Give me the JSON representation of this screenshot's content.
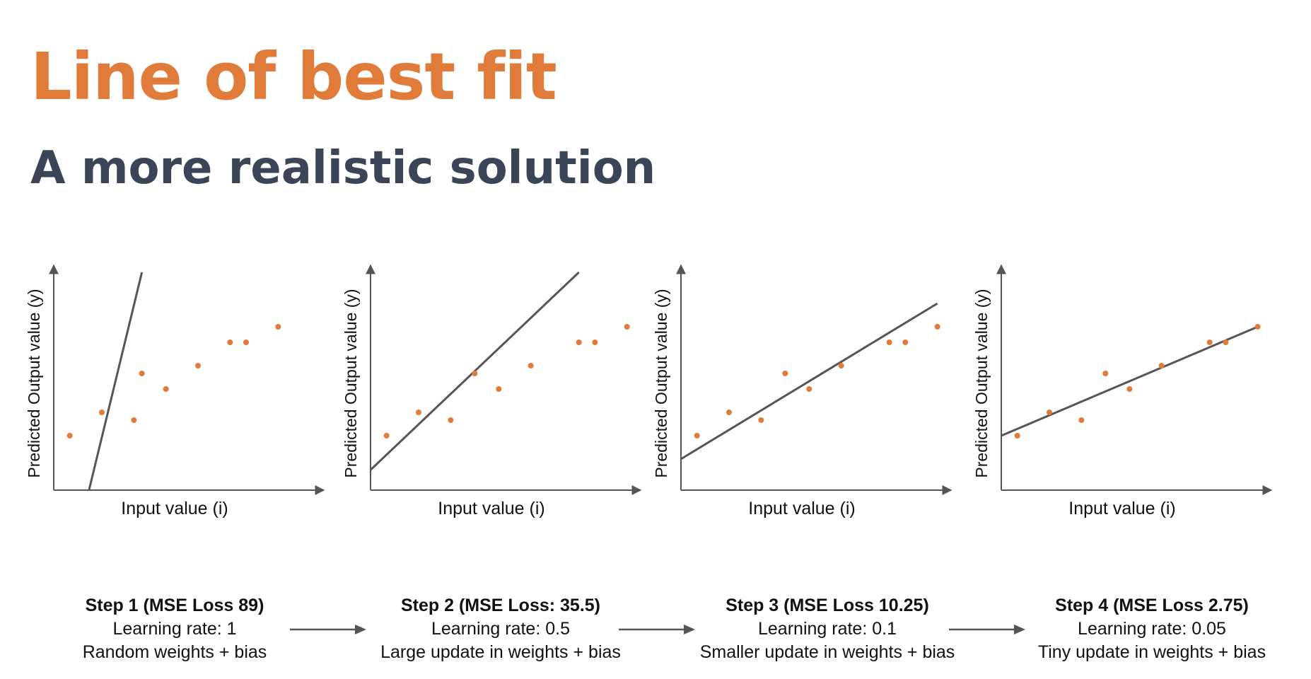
{
  "title": "Line of best fit",
  "subtitle": "A more realistic solution",
  "colors": {
    "title": "#e07b39",
    "subtitle": "#3c4457",
    "points": "#e07b39",
    "line": "#555555",
    "axes": "#555555"
  },
  "chart_data": [
    {
      "type": "scatter",
      "xlabel": "Input value (i)",
      "ylabel": "Predicted Output value (y)",
      "points": {
        "x": [
          1,
          3,
          5,
          5.5,
          7,
          9,
          11,
          12,
          14
        ],
        "y": [
          3.5,
          5,
          4.5,
          7.5,
          6.5,
          8,
          9.5,
          9.5,
          10.5
        ]
      },
      "fit_line": {
        "x": [
          2.2,
          5.5
        ],
        "y": [
          0,
          14
        ]
      }
    },
    {
      "type": "scatter",
      "xlabel": "Input value (i)",
      "ylabel": "Predicted Output value (y)",
      "points": {
        "x": [
          1,
          3,
          5,
          6.5,
          8,
          10,
          13,
          14,
          16
        ],
        "y": [
          3.5,
          5,
          4.5,
          7.5,
          6.5,
          8,
          9.5,
          9.5,
          10.5
        ]
      },
      "fit_line": {
        "x": [
          0,
          13
        ],
        "y": [
          1.3,
          14
        ]
      }
    },
    {
      "type": "scatter",
      "xlabel": "Input value (i)",
      "ylabel": "Predicted Output value (y)",
      "points": {
        "x": [
          1,
          3,
          5,
          6.5,
          8,
          10,
          13,
          14,
          16
        ],
        "y": [
          3.5,
          5,
          4.5,
          7.5,
          6.5,
          8,
          9.5,
          9.5,
          10.5
        ]
      },
      "fit_line": {
        "x": [
          0,
          16
        ],
        "y": [
          2,
          12
        ]
      }
    },
    {
      "type": "scatter",
      "xlabel": "Input value (i)",
      "ylabel": "Predicted Output value (y)",
      "points": {
        "x": [
          1,
          3,
          5,
          6.5,
          8,
          10,
          13,
          14,
          16
        ],
        "y": [
          3.5,
          5,
          4.5,
          7.5,
          6.5,
          8,
          9.5,
          9.5,
          10.5
        ]
      },
      "fit_line": {
        "x": [
          0,
          16
        ],
        "y": [
          3.5,
          10.5
        ]
      }
    }
  ],
  "steps": [
    {
      "heading": "Step 1 (MSE Loss 89)",
      "rate": "Learning rate: 1",
      "note": "Random weights + bias"
    },
    {
      "heading": "Step 2 (MSE Loss: 35.5)",
      "rate": "Learning rate: 0.5",
      "note": "Large update in weights + bias"
    },
    {
      "heading": "Step 3 (MSE Loss 10.25)",
      "rate": "Learning rate: 0.1",
      "note": "Smaller update in weights + bias"
    },
    {
      "heading": "Step 4 (MSE Loss 2.75)",
      "rate": "Learning rate: 0.05",
      "note": "Tiny update in weights + bias"
    }
  ]
}
